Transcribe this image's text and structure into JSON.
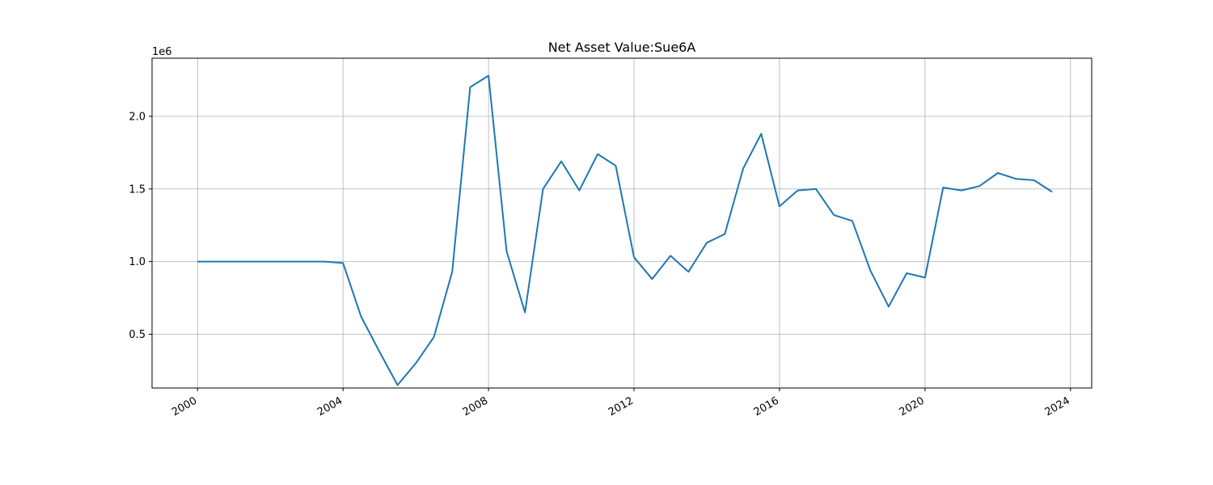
{
  "chart_data": {
    "type": "line",
    "title": "Net Asset Value:Sue6A",
    "xlabel": "",
    "ylabel": "",
    "y_offset_label": "1e6",
    "grid": true,
    "x_ticks": [
      "2000",
      "2004",
      "2008",
      "2012",
      "2016",
      "2020",
      "2024"
    ],
    "y_ticks": [
      "0.5",
      "1.0",
      "1.5",
      "2.0"
    ],
    "xlim": [
      "1998-10-01",
      "2024-08-01"
    ],
    "ylim": [
      130000,
      2400000
    ],
    "series_color": "#1f77b4",
    "series": [
      {
        "x": [
          "2000-01-01",
          "2000-07-01",
          "2001-01-01",
          "2001-07-01",
          "2002-01-01",
          "2002-07-01",
          "2003-01-01",
          "2003-07-01",
          "2004-01-01",
          "2004-07-01",
          "2005-01-01",
          "2005-07-01",
          "2006-01-01",
          "2006-07-01",
          "2007-01-01",
          "2007-07-01",
          "2008-01-01",
          "2008-07-01",
          "2009-01-01",
          "2009-07-01",
          "2010-01-01",
          "2010-07-01",
          "2011-01-01",
          "2011-07-01",
          "2012-01-01",
          "2012-07-01",
          "2013-01-01",
          "2013-07-01",
          "2014-01-01",
          "2014-07-01",
          "2015-01-01",
          "2015-07-01",
          "2016-01-01",
          "2016-07-01",
          "2017-01-01",
          "2017-07-01",
          "2018-01-01",
          "2018-07-01",
          "2019-01-01",
          "2019-07-01",
          "2020-01-01",
          "2020-07-01",
          "2021-01-01",
          "2021-07-01",
          "2022-01-01",
          "2022-07-01",
          "2023-01-01",
          "2023-07-01"
        ],
        "y": [
          1000000,
          1000000,
          1000000,
          1000000,
          1000000,
          1000000,
          1000000,
          1000000,
          990000,
          620000,
          380000,
          150000,
          300000,
          480000,
          930000,
          2200000,
          2280000,
          1070000,
          650000,
          1500000,
          1690000,
          1490000,
          1740000,
          1660000,
          1030000,
          880000,
          1040000,
          930000,
          1130000,
          1190000,
          1640000,
          1880000,
          1380000,
          1490000,
          1500000,
          1320000,
          1280000,
          940000,
          690000,
          920000,
          890000,
          1510000,
          1490000,
          1520000,
          1610000,
          1570000,
          1560000,
          1480000
        ]
      }
    ]
  }
}
